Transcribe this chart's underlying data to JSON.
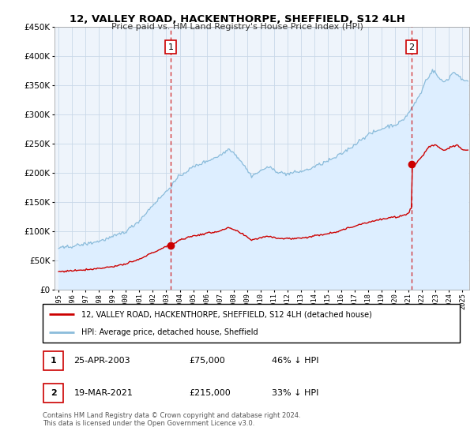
{
  "title": "12, VALLEY ROAD, HACKENTHORPE, SHEFFIELD, S12 4LH",
  "subtitle": "Price paid vs. HM Land Registry's House Price Index (HPI)",
  "legend_line1": "12, VALLEY ROAD, HACKENTHORPE, SHEFFIELD, S12 4LH (detached house)",
  "legend_line2": "HPI: Average price, detached house, Sheffield",
  "footnote": "Contains HM Land Registry data © Crown copyright and database right 2024.\nThis data is licensed under the Open Government Licence v3.0.",
  "transactions": [
    {
      "num": 1,
      "date": "25-APR-2003",
      "price": 75000,
      "pct": "46%",
      "year": 2003.32
    },
    {
      "num": 2,
      "date": "19-MAR-2021",
      "price": 215000,
      "pct": "33%",
      "year": 2021.22
    }
  ],
  "table_rows": [
    {
      "num": "1",
      "date": "25-APR-2003",
      "price": "£75,000",
      "note": "46% ↓ HPI"
    },
    {
      "num": "2",
      "date": "19-MAR-2021",
      "price": "£215,000",
      "note": "33% ↓ HPI"
    }
  ],
  "ylim": [
    0,
    450000
  ],
  "xlim_start": 1994.7,
  "xlim_end": 2025.5,
  "hpi_color": "#8bbcdb",
  "hpi_fill_color": "#ddeeff",
  "price_color": "#cc0000",
  "vline_color": "#cc0000",
  "marker_color": "#cc0000",
  "background_color": "#ffffff",
  "plot_bg_color": "#eef4fb",
  "grid_color": "#c8d8e8"
}
